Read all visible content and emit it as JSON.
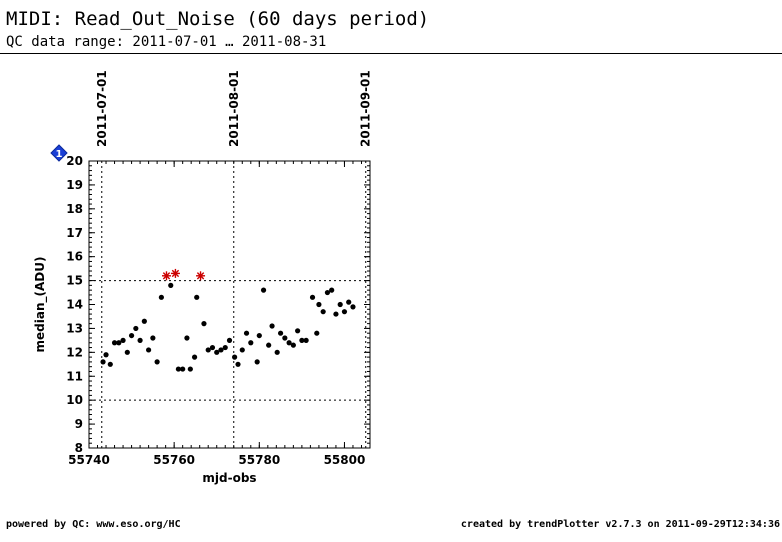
{
  "header": {
    "title": "MIDI: Read_Out_Noise (60 days period)",
    "subtitle": "QC data range: 2011-07-01 … 2011-08-31"
  },
  "footer": {
    "left": "powered by QC: www.eso.org/HC",
    "right": "created by trendPlotter v2.7.3 on 2011-09-29T12:34:36"
  },
  "chart_data": {
    "type": "scatter",
    "xlabel": "mjd-obs",
    "ylabel": "median_(ADU)",
    "xlim": [
      55740,
      55806
    ],
    "ylim": [
      8,
      20
    ],
    "x_ticks": [
      55740,
      55760,
      55780,
      55800
    ],
    "y_ticks": [
      8,
      9,
      10,
      11,
      12,
      13,
      14,
      15,
      16,
      17,
      18,
      19,
      20
    ],
    "top_date_ticks": [
      {
        "label": "2011-07-01",
        "mjd": 55743
      },
      {
        "label": "2011-08-01",
        "mjd": 55774
      },
      {
        "label": "2011-09-01",
        "mjd": 55805
      }
    ],
    "reference_lines": [
      10,
      15
    ],
    "marker_icon_label": "1",
    "series": [
      {
        "marker": "dot",
        "color": "#000000",
        "points": [
          [
            55743.3,
            11.6
          ],
          [
            55744,
            11.9
          ],
          [
            55745,
            11.5
          ],
          [
            55746,
            12.4
          ],
          [
            55747,
            12.4
          ],
          [
            55748,
            12.5
          ],
          [
            55749,
            12.0
          ],
          [
            55750,
            12.7
          ],
          [
            55751,
            13.0
          ],
          [
            55752,
            12.5
          ],
          [
            55753,
            13.3
          ],
          [
            55754,
            12.1
          ],
          [
            55755,
            12.6
          ],
          [
            55756,
            11.6
          ],
          [
            55757,
            14.3
          ],
          [
            55759.2,
            14.8
          ],
          [
            55761,
            11.3
          ],
          [
            55762,
            11.3
          ],
          [
            55763,
            12.6
          ],
          [
            55763.8,
            11.3
          ],
          [
            55764.8,
            11.8
          ],
          [
            55765.3,
            14.3
          ],
          [
            55767,
            13.2
          ],
          [
            55768,
            12.1
          ],
          [
            55769,
            12.2
          ],
          [
            55770,
            12.0
          ],
          [
            55771,
            12.1
          ],
          [
            55772,
            12.2
          ],
          [
            55773,
            12.5
          ],
          [
            55774.2,
            11.8
          ],
          [
            55775,
            11.5
          ],
          [
            55776,
            12.1
          ],
          [
            55777,
            12.8
          ],
          [
            55778,
            12.4
          ],
          [
            55779.5,
            11.6
          ],
          [
            55780,
            12.7
          ],
          [
            55781,
            14.6
          ],
          [
            55782.2,
            12.3
          ],
          [
            55783,
            13.1
          ],
          [
            55784.2,
            12.0
          ],
          [
            55785,
            12.8
          ],
          [
            55786,
            12.6
          ],
          [
            55787,
            12.4
          ],
          [
            55788,
            12.3
          ],
          [
            55789,
            12.9
          ],
          [
            55790,
            12.5
          ],
          [
            55791,
            12.5
          ],
          [
            55792.5,
            14.3
          ],
          [
            55793.5,
            12.8
          ],
          [
            55794,
            14.0
          ],
          [
            55795,
            13.7
          ],
          [
            55796,
            14.5
          ],
          [
            55797,
            14.6
          ],
          [
            55798,
            13.6
          ],
          [
            55799,
            14.0
          ],
          [
            55800,
            13.7
          ],
          [
            55801,
            14.1
          ],
          [
            55802,
            13.9
          ]
        ]
      },
      {
        "marker": "star",
        "color": "#cc0000",
        "points": [
          [
            55758.2,
            15.2
          ],
          [
            55760.3,
            15.3
          ],
          [
            55766.2,
            15.2
          ]
        ]
      }
    ]
  }
}
